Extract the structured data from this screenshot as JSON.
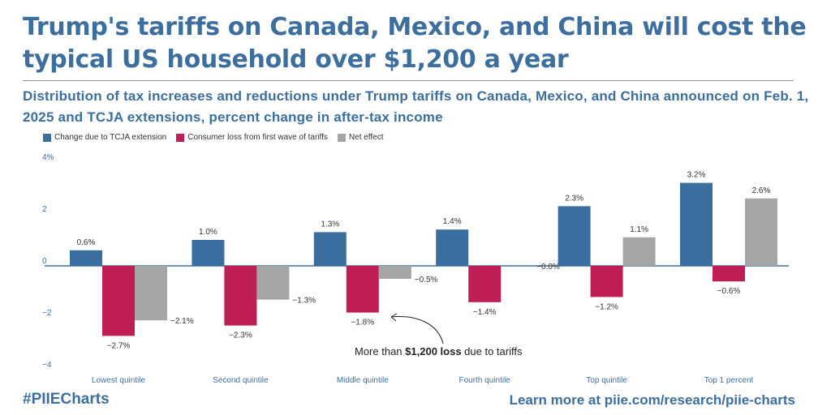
{
  "colors": {
    "title": "#3d6f9e",
    "tcja": "#3a6e9f",
    "tariff": "#be1e55",
    "net": "#a5a5a5",
    "axis": "#3d6f9e"
  },
  "header": {
    "title": "Trump's tariffs on Canada, Mexico, and China will cost the typical US household over $1,200 a year",
    "subtitle": "Distribution of tax increases and reductions under Trump tariffs on Canada, Mexico, and China announced on Feb. 1, 2025 and TCJA extensions, percent change in after-tax income"
  },
  "footer": {
    "hashtag": "#PIIECharts",
    "link": "Learn more at piie.com/research/piie-charts"
  },
  "annotation": {
    "prefix": "More than ",
    "bold": "$1,200 loss",
    "suffix": " due to tariffs"
  },
  "chart_data": {
    "type": "bar",
    "categories": [
      "Lowest quintile",
      "Second quintile",
      "Middle quintile",
      "Fourth quintile",
      "Top quintile",
      "Top 1 percent"
    ],
    "series": [
      {
        "name": "Change due to TCJA extension",
        "values": [
          0.6,
          1.0,
          1.3,
          1.4,
          2.3,
          3.2
        ],
        "labels": [
          "0.6%",
          "1.0%",
          "1.3%",
          "1.4%",
          "2.3%",
          "3.2%"
        ]
      },
      {
        "name": "Consumer loss from first wave of tariffs",
        "values": [
          -2.7,
          -2.3,
          -1.8,
          -1.4,
          -1.2,
          -0.6
        ],
        "labels": [
          "−2.7%",
          "−2.3%",
          "−1.8%",
          "−1.4%",
          "−1.2%",
          "−0.6%"
        ]
      },
      {
        "name": "Net effect",
        "values": [
          -2.1,
          -1.3,
          -0.5,
          0.0,
          1.1,
          2.6
        ],
        "labels": [
          "−2.1%",
          "−1.3%",
          "−0.5%",
          "−0.0%",
          "1.1%",
          "2.6%"
        ]
      }
    ],
    "yticks": [
      "4%",
      "2",
      "0",
      "−2",
      "−4"
    ],
    "ytick_values": [
      4,
      2,
      0,
      -2,
      -4
    ],
    "ylim": [
      -4,
      4
    ],
    "xlabel": "",
    "ylabel": "",
    "legend_position": "top-left"
  }
}
